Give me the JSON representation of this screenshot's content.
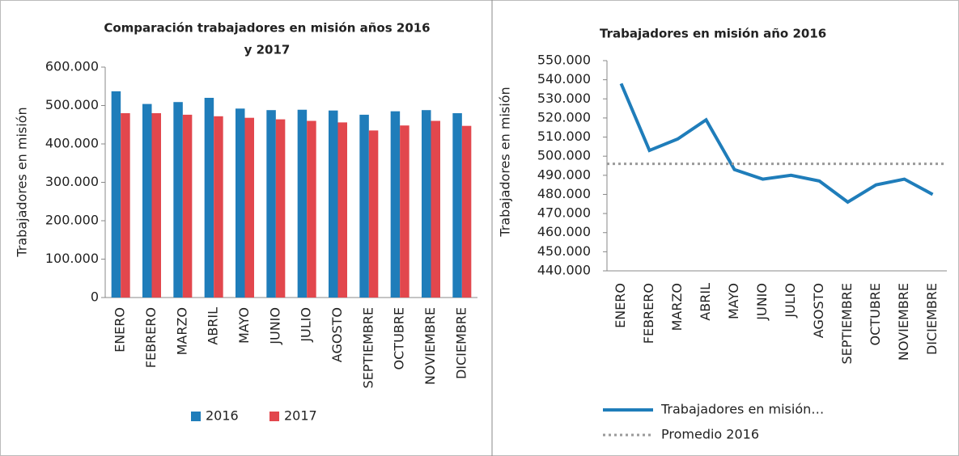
{
  "chart_data": [
    {
      "type": "bar",
      "title": [
        "Comparación trabajadores en misión años 2016",
        "y 2017"
      ],
      "y_label": "Trabajadores en misión",
      "categories": [
        "ENERO",
        "FEBRERO",
        "MARZO",
        "ABRIL",
        "MAYO",
        "JUNIO",
        "JULIO",
        "AGOSTO",
        "SEPTIEMBRE",
        "OCTUBRE",
        "NOVIEMBRE",
        "DICIEMBRE"
      ],
      "series": [
        {
          "name": "2016",
          "color": "#1f7dba",
          "values": [
            537000,
            504000,
            509000,
            520000,
            492000,
            488000,
            489000,
            487000,
            476000,
            485000,
            488000,
            480000
          ]
        },
        {
          "name": "2017",
          "color": "#e2474d",
          "values": [
            480000,
            480000,
            476000,
            472000,
            468000,
            464000,
            460000,
            456000,
            435000,
            448000,
            460000,
            447000
          ]
        }
      ],
      "ylim": [
        0,
        600000
      ],
      "yticks": [
        0,
        {
          "value": 100000,
          "label": "100.000"
        },
        {
          "value": 200000,
          "label": "200.000"
        },
        {
          "value": 300000,
          "label": "300.000"
        },
        {
          "value": 400000,
          "label": "400.000"
        },
        {
          "value": 500000,
          "label": "500.000"
        },
        {
          "value": 600000,
          "label": "600.000"
        }
      ],
      "legend": "bottom"
    },
    {
      "type": "line",
      "title": [
        "Trabajadores en misión año 2016"
      ],
      "y_label": "Trabajadores en misión",
      "categories": [
        "ENERO",
        "FEBRERO",
        "MARZO",
        "ABRIL",
        "MAYO",
        "JUNIO",
        "JULIO",
        "AGOSTO",
        "SEPTIEMBRE",
        "OCTUBRE",
        "NOVIEMBRE",
        "DICIEMBRE"
      ],
      "series": [
        {
          "name": "Trabajadores en misión…",
          "color": "#1f7dba",
          "style": "solid",
          "values": [
            538000,
            503000,
            509000,
            519000,
            493000,
            488000,
            490000,
            487000,
            476000,
            485000,
            488000,
            480000
          ]
        },
        {
          "name": "Promedio 2016",
          "color": "#9a9a9a",
          "style": "dotted",
          "values": [
            496000,
            496000,
            496000,
            496000,
            496000,
            496000,
            496000,
            496000,
            496000,
            496000,
            496000,
            496000
          ]
        }
      ],
      "ylim": [
        440000,
        550000
      ],
      "yticks": [
        {
          "value": 440000,
          "label": "440.000"
        },
        {
          "value": 450000,
          "label": "450.000"
        },
        {
          "value": 460000,
          "label": "460.000"
        },
        {
          "value": 470000,
          "label": "470.000"
        },
        {
          "value": 480000,
          "label": "480.000"
        },
        {
          "value": 490000,
          "label": "490.000"
        },
        {
          "value": 500000,
          "label": "500.000"
        },
        {
          "value": 510000,
          "label": "510.000"
        },
        {
          "value": 520000,
          "label": "520.000"
        },
        {
          "value": 530000,
          "label": "530.000"
        },
        {
          "value": 540000,
          "label": "540.000"
        },
        {
          "value": 550000,
          "label": "550.000"
        }
      ],
      "legend": "bottom"
    }
  ]
}
